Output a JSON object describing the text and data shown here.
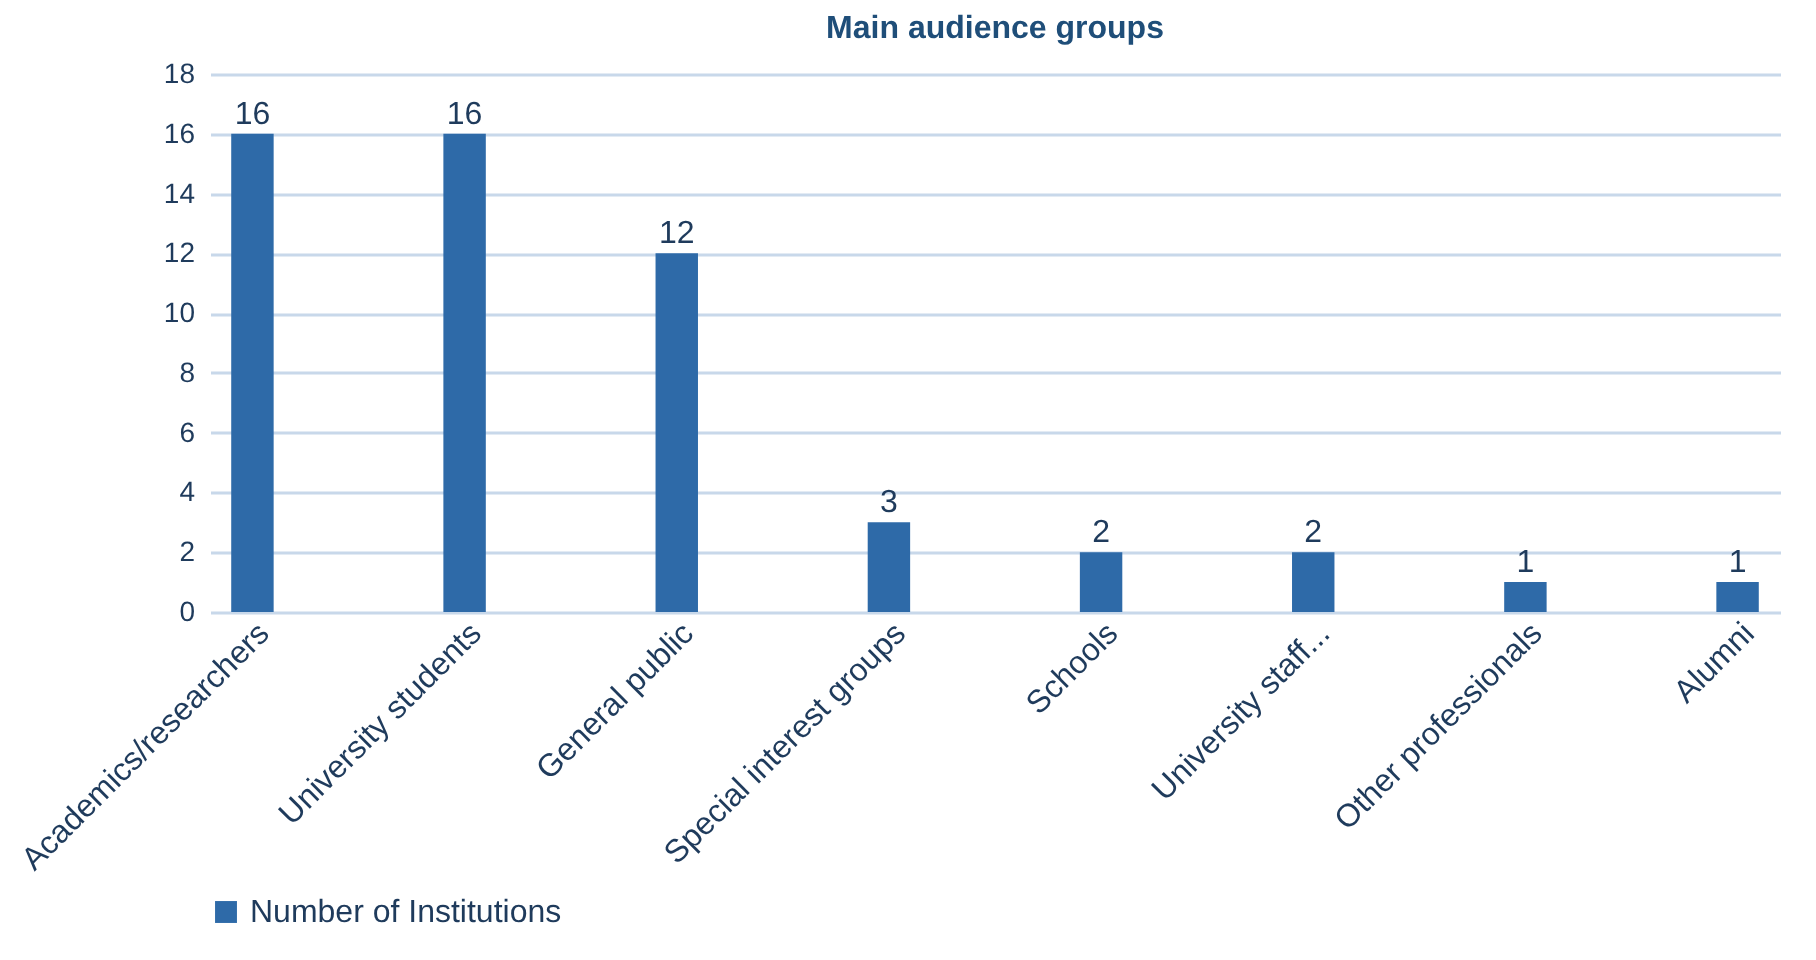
{
  "chart_data": {
    "type": "bar",
    "title": "Main audience groups",
    "categories": [
      "Academics/researchers",
      "University students",
      "General public",
      "Special interest groups",
      "Schools",
      "University staff...",
      "Other professionals",
      "Alumni"
    ],
    "series": [
      {
        "name": "Number of Institutions",
        "color": "#2e6aa8",
        "values": [
          16,
          16,
          12,
          3,
          2,
          2,
          1,
          1
        ]
      }
    ],
    "ylim": [
      0,
      18
    ],
    "yticks": [
      0,
      2,
      4,
      6,
      8,
      10,
      12,
      14,
      16,
      18
    ],
    "grid": "y",
    "legend": "bottom",
    "data_labels": true
  }
}
